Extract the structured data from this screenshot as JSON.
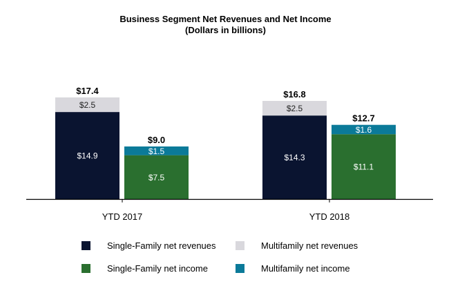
{
  "chart_data": {
    "type": "bar",
    "title": "Business Segment Net Revenues and Net Income",
    "subtitle": "(Dollars in billions)",
    "categories": [
      "YTD 2017",
      "YTD 2018"
    ],
    "stacks": [
      {
        "key": "revenues",
        "series": [
          "Single-Family net revenues",
          "Multifamily net revenues"
        ],
        "totals": [
          "$17.4",
          "$16.8"
        ]
      },
      {
        "key": "income",
        "series": [
          "Single-Family net income",
          "Multifamily net income"
        ],
        "totals": [
          "$9.0",
          "$12.7"
        ]
      }
    ],
    "series": [
      {
        "name": "Single-Family net revenues",
        "stack": "revenues",
        "values": [
          14.9,
          14.3
        ],
        "labels": [
          "$14.9",
          "$14.3"
        ],
        "color": "#0a1430"
      },
      {
        "name": "Multifamily net revenues",
        "stack": "revenues",
        "values": [
          2.5,
          2.5
        ],
        "labels": [
          "$2.5",
          "$2.5"
        ],
        "color": "#d9d8dd"
      },
      {
        "name": "Single-Family net income",
        "stack": "income",
        "values": [
          7.5,
          11.1
        ],
        "labels": [
          "$7.5",
          "$11.1"
        ],
        "color": "#2a6f2f"
      },
      {
        "name": "Multifamily net income",
        "stack": "income",
        "values": [
          1.5,
          1.6
        ],
        "labels": [
          "$1.5",
          "$1.6"
        ],
        "color": "#0b7a99"
      }
    ],
    "legend": [
      "Single-Family net revenues",
      "Multifamily net revenues",
      "Single-Family net income",
      "Multifamily net income"
    ],
    "legend_position": "bottom",
    "grid": false
  }
}
